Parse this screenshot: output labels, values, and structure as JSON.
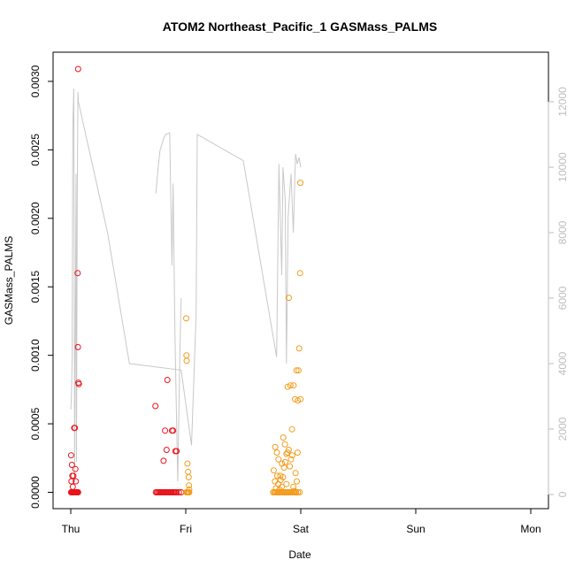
{
  "chart_data": {
    "type": "scatter",
    "title": "ATOM2 Northeast_Pacific_1 GASMass_PALMS",
    "xlabel": "Date",
    "ylabel": "GASMass_PALMS",
    "x_ticks": [
      "Thu",
      "Fri",
      "Sat",
      "Sun",
      "Mon"
    ],
    "y_ticks": [
      "0.0000",
      "0.0005",
      "0.0010",
      "0.0015",
      "0.0020",
      "0.0025",
      "0.0030"
    ],
    "y2_ticks": [
      "0",
      "2000",
      "4000",
      "6000",
      "8000",
      "10000",
      "12000"
    ],
    "ylim": [
      0,
      0.0031
    ],
    "y2lim": [
      0,
      12500
    ],
    "grid": false,
    "colors": {
      "red": "#e8141c",
      "orange": "#f39c1e",
      "altitude": "#c8c8c8",
      "axis": "#000000",
      "axis_right": "#bdbdbd"
    },
    "altitude_line": {
      "name": "",
      "segments": [
        [
          [
            0.0,
            2600
          ],
          [
            0.005,
            2900
          ],
          [
            0.012,
            4200
          ],
          [
            0.018,
            11200
          ],
          [
            0.026,
            12400
          ],
          [
            0.03,
            7000
          ],
          [
            0.034,
            400
          ],
          [
            0.04,
            5000
          ],
          [
            0.046,
            9800
          ],
          [
            0.05,
            1000
          ],
          [
            0.056,
            9000
          ],
          [
            0.062,
            12300
          ],
          [
            0.066,
            12000
          ],
          [
            0.32,
            8000
          ],
          [
            0.51,
            4000
          ],
          [
            0.96,
            3800
          ],
          [
            1.05,
            1500
          ],
          [
            1.09,
            5500
          ],
          [
            1.1,
            11000
          ],
          [
            1.5,
            10200
          ],
          [
            1.79,
            4200
          ],
          [
            1.81,
            10100
          ],
          [
            1.835,
            6700
          ],
          [
            1.845,
            10000
          ],
          [
            1.865,
            9000
          ],
          [
            1.875,
            4000
          ],
          [
            1.89,
            8500
          ],
          [
            1.915,
            9800
          ],
          [
            1.935,
            8000
          ],
          [
            1.955,
            10400
          ],
          [
            1.97,
            10100
          ],
          [
            1.985,
            10300
          ],
          [
            2.0,
            10000
          ]
        ],
        [
          [
            0.74,
            9200
          ],
          [
            0.76,
            10000
          ],
          [
            0.775,
            10500
          ],
          [
            0.81,
            10900
          ],
          [
            0.825,
            11000
          ],
          [
            0.86,
            11050
          ],
          [
            0.88,
            7000
          ],
          [
            0.89,
            9500
          ],
          [
            0.905,
            5000
          ],
          [
            0.93,
            400
          ],
          [
            0.94,
            2500
          ],
          [
            0.95,
            4500
          ],
          [
            0.96,
            6000
          ]
        ]
      ]
    },
    "series": [
      {
        "color": "red",
        "x": [
          0.003,
          0.006,
          0.008,
          0.01,
          0.012,
          0.014,
          0.016,
          0.018,
          0.02,
          0.024,
          0.028,
          0.03,
          0.032,
          0.034,
          0.036,
          0.038,
          0.04,
          0.044,
          0.048,
          0.052,
          0.056,
          0.06,
          0.064,
          0.003,
          0.006,
          0.01,
          0.014,
          0.018,
          0.022,
          0.03,
          0.036,
          0.04,
          0.044,
          0.046,
          0.05,
          0.06,
          0.062,
          0.066,
          0.07,
          0.064,
          0.74,
          0.75,
          0.76,
          0.77,
          0.78,
          0.79,
          0.8,
          0.81,
          0.82,
          0.83,
          0.84,
          0.85,
          0.86,
          0.87,
          0.88,
          0.89,
          0.9,
          0.91,
          0.92,
          0.94,
          0.96,
          0.736,
          0.807,
          0.82,
          0.833,
          0.88,
          0.89,
          0.91,
          0.92,
          0.84
        ],
        "y": [
          0.0,
          0.0,
          0.0,
          0.0,
          0.0,
          0.0,
          0.0,
          0.0,
          0.0,
          0.0,
          0.0,
          0.0,
          0.0,
          0.0,
          0.0,
          0.0,
          0.0,
          0.0,
          0.0,
          0.0,
          0.0,
          0.0,
          0.0,
          0.00027,
          8e-05,
          0.0002,
          0.00012,
          4e-05,
          0.00012,
          0.00047,
          0.00047,
          0.00017,
          8e-05,
          0.0,
          0.0,
          0.0016,
          0.00106,
          0.0008,
          0.00079,
          0.00309,
          0.0,
          0.0,
          0.0,
          0.0,
          0.0,
          0.0,
          0.0,
          0.0,
          0.0,
          0.0,
          0.0,
          0.0,
          0.0,
          0.0,
          0.0,
          0.0,
          0.0,
          0.0,
          0.0,
          0.0,
          0.0,
          0.00063,
          0.00023,
          0.00045,
          0.00031,
          0.00045,
          0.00045,
          0.0003,
          0.0003,
          0.00082
        ]
      },
      {
        "color": "orange",
        "x": [
          1.005,
          1.01,
          1.015,
          1.02,
          1.025,
          1.03,
          1.004,
          1.006,
          1.008,
          1.015,
          1.02,
          1.025,
          1.028,
          1.03,
          1.76,
          1.77,
          1.78,
          1.79,
          1.8,
          1.81,
          1.82,
          1.83,
          1.84,
          1.85,
          1.86,
          1.87,
          1.88,
          1.89,
          1.9,
          1.91,
          1.92,
          1.93,
          1.94,
          1.95,
          1.96,
          1.975,
          1.99,
          1.765,
          1.775,
          1.785,
          1.795,
          1.805,
          1.815,
          1.825,
          1.835,
          1.845,
          1.855,
          1.865,
          1.875,
          1.885,
          1.895,
          1.905,
          1.915,
          1.925,
          1.935,
          1.945,
          1.955,
          1.965,
          1.778,
          1.792,
          1.806,
          1.822,
          1.836,
          1.848,
          1.862,
          1.876,
          1.886,
          1.896,
          1.91,
          1.924,
          1.938,
          1.95,
          1.962,
          1.974,
          1.986,
          1.996
        ],
        "y": [
          0.0,
          0.0,
          0.0,
          0.0,
          0.0,
          0.0,
          0.00127,
          0.001,
          0.00096,
          0.00021,
          0.00015,
          0.00011,
          5e-05,
          2e-05,
          0.0,
          0.0,
          0.0,
          0.0,
          0.0,
          0.0,
          0.0,
          0.0,
          0.0,
          0.0,
          0.0,
          0.0,
          0.0,
          0.0,
          0.0,
          0.0,
          0.0,
          0.0,
          0.0,
          0.0,
          0.0,
          0.0,
          0.0,
          0.00016,
          8e-05,
          3e-05,
          0.00012,
          6e-05,
          2e-05,
          9e-05,
          4e-05,
          0.00011,
          0.00018,
          0.00022,
          6e-05,
          0.00029,
          0.00031,
          0.00019,
          0.00024,
          0.00027,
          4e-05,
          1e-05,
          0.00014,
          8e-05,
          0.00033,
          0.00029,
          0.00024,
          0.00012,
          0.00021,
          0.0004,
          0.00035,
          0.00028,
          0.00077,
          0.00142,
          0.00078,
          0.00046,
          0.00078,
          0.00068,
          0.00089,
          0.00067,
          0.00105,
          0.00226
        ]
      },
      {
        "color": "orange",
        "x": [
          1.994,
          1.998,
          1.98,
          1.972
        ],
        "y": [
          0.0016,
          0.00068,
          0.00089,
          0.00029
        ]
      }
    ]
  }
}
